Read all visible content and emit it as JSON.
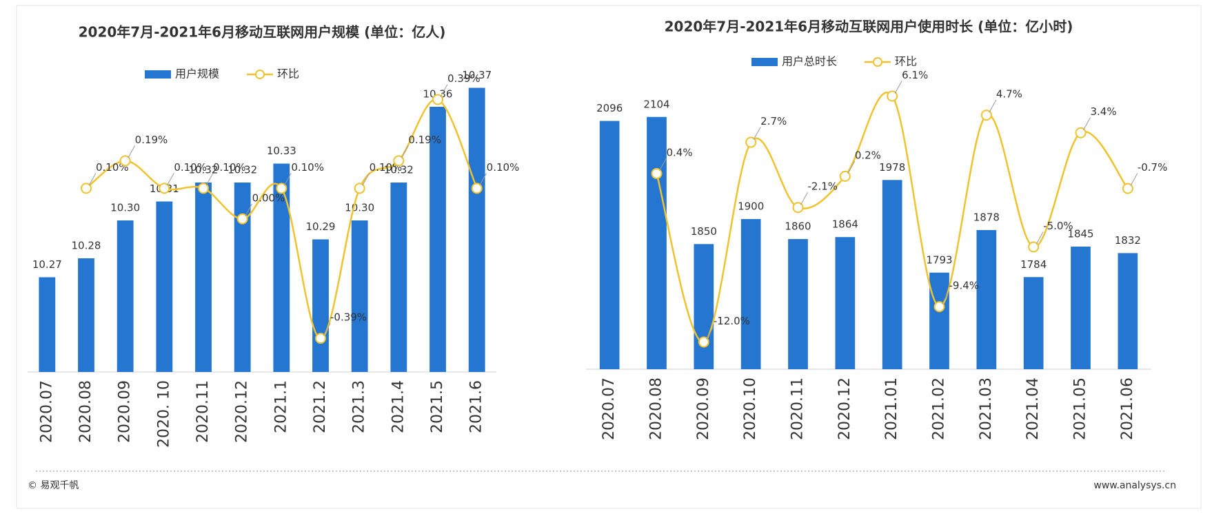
{
  "chart_data": [
    {
      "type": "combo",
      "title": "2020年7月-2021年6月移动互联网用户规模 (单位：亿人)",
      "categories": [
        "2020.07",
        "2020.08",
        "2020.09",
        "2020. 10",
        "2020.11",
        "2020.12",
        "2021.1",
        "2021.2",
        "2021.3",
        "2021.4",
        "2021.5",
        "2021.6"
      ],
      "series": [
        {
          "name": "用户规模",
          "color": "#2476d0",
          "kind": "bar",
          "values": [
            10.27,
            10.28,
            10.3,
            10.31,
            10.32,
            10.32,
            10.33,
            10.29,
            10.3,
            10.32,
            10.36,
            10.37
          ],
          "value_labels": [
            "10.27",
            "10.28",
            "10.30",
            "10.31",
            "10.32",
            "10.32",
            "10.33",
            "10.29",
            "10.30",
            "10.32",
            "10.36",
            "10.37"
          ]
        },
        {
          "name": "环比",
          "color": "#f0c22e",
          "kind": "line",
          "axis": "y2",
          "smooth": true,
          "values": [
            null,
            0.1,
            0.19,
            0.1,
            0.1,
            0.0,
            0.1,
            -0.39,
            0.1,
            0.19,
            0.39,
            0.1
          ],
          "value_labels": [
            null,
            "0.10%",
            "0.19%",
            "0.10%",
            "0.10%",
            "0.00%",
            "0.10%",
            "-0.39%",
            "0.10%",
            "0.19%",
            "0.39%",
            "0.10%"
          ]
        }
      ],
      "ylim": [
        10.22,
        10.38
      ],
      "y2lim": [
        -0.5,
        0.49
      ]
    },
    {
      "type": "combo",
      "title": "2020年7月-2021年6月移动互联网用户使用时长 (单位：亿小时)",
      "categories": [
        "2020.07",
        "2020.08",
        "2020.09",
        "2020.10",
        "2020.11",
        "2020.12",
        "2021.01",
        "2021.02",
        "2021.03",
        "2021.04",
        "2021.05",
        "2021.06"
      ],
      "series": [
        {
          "name": "用户总时长",
          "color": "#2476d0",
          "kind": "bar",
          "values": [
            2096,
            2104,
            1850,
            1900,
            1860,
            1864,
            1978,
            1793,
            1878,
            1784,
            1845,
            1832
          ]
        },
        {
          "name": "环比",
          "color": "#f0c22e",
          "kind": "line",
          "axis": "y2",
          "smooth": true,
          "values": [
            null,
            0.4,
            -12.0,
            2.7,
            -2.1,
            0.2,
            6.1,
            -9.4,
            4.7,
            -5.0,
            3.4,
            -0.7
          ],
          "value_labels": [
            null,
            "0.4%",
            "-12.0%",
            "2.7%",
            "-2.1%",
            "0.2%",
            "6.1%",
            "-9.4%",
            "4.7%",
            "-5.0%",
            "3.4%",
            "-0.7%"
          ]
        }
      ],
      "ylim": [
        1600,
        2200
      ],
      "y2lim": [
        -14,
        8.1
      ]
    }
  ],
  "footer": {
    "left": "© 易观千帆",
    "right": "www.analysys.cn"
  }
}
